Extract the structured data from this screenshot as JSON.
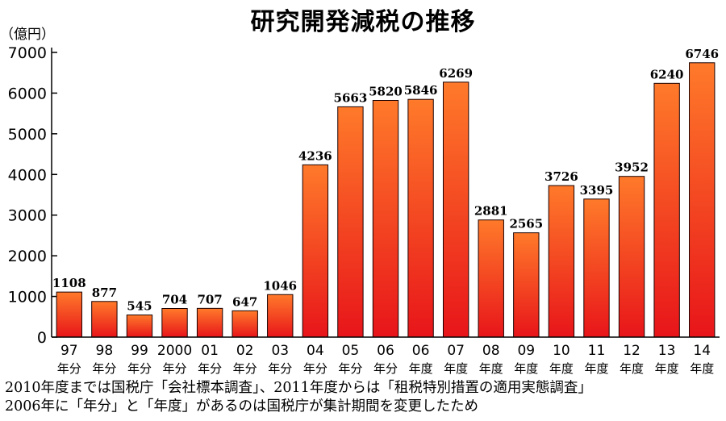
{
  "chart_data": {
    "type": "bar",
    "title": "研究開発減税の推移",
    "ylabel": "（億円）",
    "ylim": [
      0,
      7000
    ],
    "yticks": [
      0,
      1000,
      2000,
      3000,
      4000,
      5000,
      6000,
      7000
    ],
    "grid": false,
    "categories": [
      {
        "top": "97",
        "bottom": "年分"
      },
      {
        "top": "98",
        "bottom": "年分"
      },
      {
        "top": "99",
        "bottom": "年分"
      },
      {
        "top": "2000",
        "bottom": "年分"
      },
      {
        "top": "01",
        "bottom": "年分"
      },
      {
        "top": "02",
        "bottom": "年分"
      },
      {
        "top": "03",
        "bottom": "年分"
      },
      {
        "top": "04",
        "bottom": "年分"
      },
      {
        "top": "05",
        "bottom": "年分"
      },
      {
        "top": "06",
        "bottom": "年分"
      },
      {
        "top": "06",
        "bottom": "年度"
      },
      {
        "top": "07",
        "bottom": "年度"
      },
      {
        "top": "08",
        "bottom": "年度"
      },
      {
        "top": "09",
        "bottom": "年度"
      },
      {
        "top": "10",
        "bottom": "年度"
      },
      {
        "top": "11",
        "bottom": "年度"
      },
      {
        "top": "12",
        "bottom": "年度"
      },
      {
        "top": "13",
        "bottom": "年度"
      },
      {
        "top": "14",
        "bottom": "年度"
      }
    ],
    "values": [
      1108,
      877,
      545,
      704,
      707,
      647,
      1046,
      4236,
      5663,
      5820,
      5846,
      6269,
      2881,
      2565,
      3726,
      3395,
      3952,
      6240,
      6746
    ],
    "bar_color_top": "#ff7a2a",
    "bar_color_bottom": "#e8151a"
  },
  "notes": [
    "2010年度までは国税庁「会社標本調査」、2011年度からは「租税特別措置の適用実態調査」",
    "2006年に「年分」と「年度」があるのは国税庁が集計期間を変更したため"
  ]
}
